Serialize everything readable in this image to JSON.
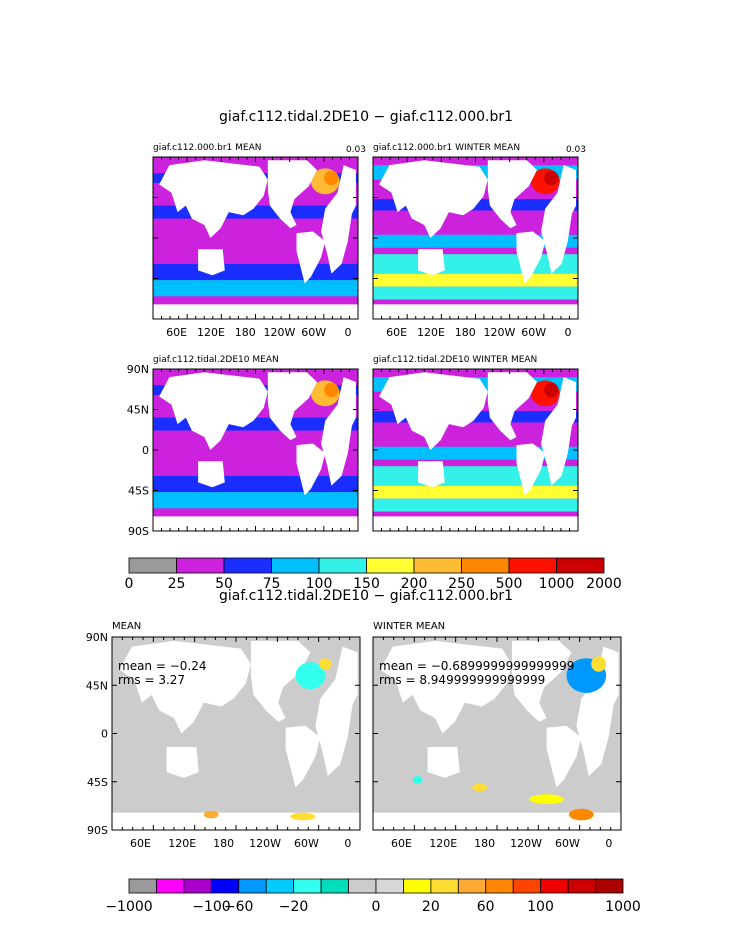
{
  "chart_data": [
    {
      "type": "heatmap",
      "figure_title": "giaf.c112.tidal.2DE10 − giaf.c112.000.br1",
      "x_ticks": [
        "60E",
        "120E",
        "180",
        "120W",
        "60W",
        "0"
      ],
      "y_ticks": [
        "90N",
        "45N",
        "0",
        "45S",
        "90S"
      ],
      "panels": [
        {
          "title": "giaf.c112.000.br1 MEAN",
          "corner_label": "0.03",
          "fill_level": 2
        },
        {
          "title": "giaf.c112.000.br1 WINTER MEAN",
          "corner_label": "0.03",
          "fill_level": 3
        },
        {
          "title": "giaf.c112.tidal.2DE10 MEAN",
          "corner_label": "",
          "fill_level": 2
        },
        {
          "title": "giaf.c112.tidal.2DE10 WINTER MEAN",
          "corner_label": "",
          "fill_level": 3
        }
      ],
      "colorbar": {
        "labels": [
          "0",
          "25",
          "50",
          "75",
          "100",
          "150",
          "200",
          "250",
          "500",
          "1000",
          "2000"
        ],
        "colors": [
          "#9a9a9a",
          "#cc22dd",
          "#1a2fff",
          "#00bfff",
          "#33f0e8",
          "#ffff33",
          "#ffbb33",
          "#ff8800",
          "#ff1100",
          "#cc0000"
        ]
      }
    },
    {
      "type": "heatmap",
      "figure_title": "giaf.c112.tidal.2DE10 − giaf.c112.000.br1",
      "x_ticks": [
        "60E",
        "120E",
        "180",
        "120W",
        "60W",
        "0"
      ],
      "y_ticks": [
        "90N",
        "45N",
        "0",
        "45S",
        "90S"
      ],
      "panels": [
        {
          "title": "MEAN",
          "mean_text": "mean = −0.24",
          "rms_text": "rms = 3.27"
        },
        {
          "title": "WINTER MEAN",
          "mean_text": "mean = −0.6899999999999999",
          "rms_text": "rms = 8.949999999999999"
        }
      ],
      "colorbar": {
        "labels": [
          "−1000",
          "−100",
          "−60",
          "−20",
          "0",
          "20",
          "60",
          "100",
          "1000"
        ],
        "colors": [
          "#9a9a9a",
          "#ff00ff",
          "#aa00cc",
          "#0000ff",
          "#0099ff",
          "#00ccff",
          "#33ffee",
          "#00ddbb",
          "#cccccc",
          "#d8d8d8",
          "#ffff00",
          "#ffdd33",
          "#ffaa33",
          "#ff8800",
          "#ff4400",
          "#ee0000",
          "#cc0000",
          "#aa0000"
        ]
      }
    }
  ]
}
